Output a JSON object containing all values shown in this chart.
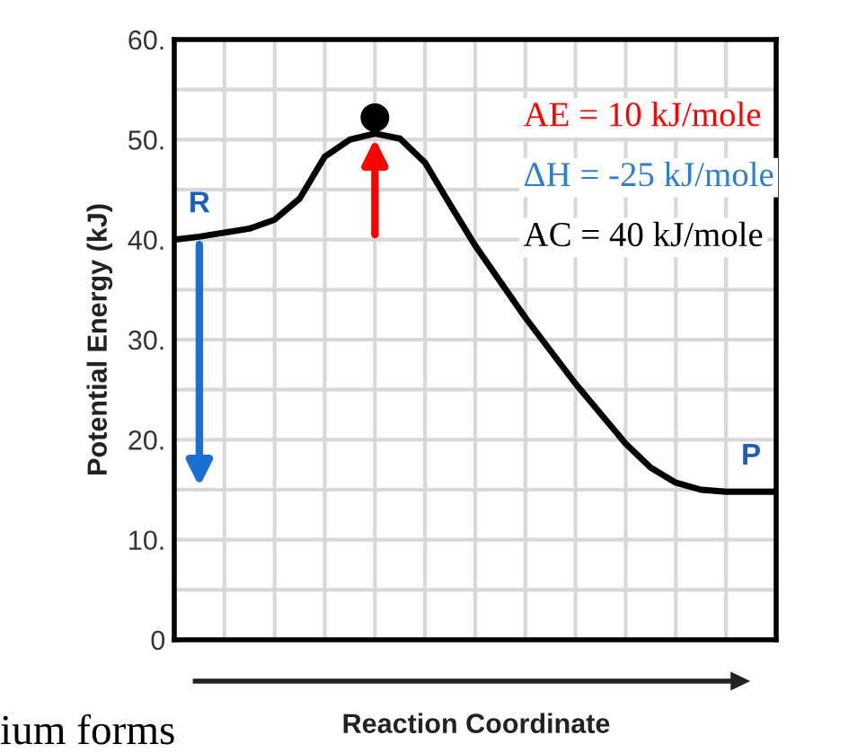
{
  "chart_data": {
    "type": "line",
    "xlabel": "Reaction Coordinate",
    "ylabel": "Potential Energy (kJ)",
    "categories": [
      null,
      null,
      null,
      null,
      null,
      null,
      null,
      null,
      null,
      null,
      null,
      null,
      null,
      null,
      null,
      null,
      null,
      null,
      null,
      null,
      null,
      null,
      null,
      null,
      null
    ],
    "series": [
      {
        "color": "#000000",
        "values": [
          40.0,
          40.3,
          40.7,
          41.1,
          42.0,
          44.1,
          48.3,
          50.0,
          50.6,
          50.1,
          47.7,
          43.5,
          39.4,
          35.8,
          32.2,
          28.9,
          25.6,
          22.6,
          19.6,
          17.2,
          15.7,
          15.0,
          14.8,
          14.8,
          14.8
        ]
      }
    ],
    "ylim": [
      0,
      60
    ],
    "yticks": [
      0,
      {
        "value": 5,
        "label": null
      },
      {
        "value": 10,
        "label": "10."
      },
      {
        "value": 15,
        "label": null
      },
      {
        "value": 20,
        "label": "20."
      },
      {
        "value": 25,
        "label": null
      },
      {
        "value": 30,
        "label": "30."
      },
      {
        "value": 35,
        "label": null
      },
      {
        "value": 40,
        "label": "40."
      },
      {
        "value": 45,
        "label": null
      },
      {
        "value": 50,
        "label": "50."
      },
      {
        "value": 55,
        "label": null
      },
      {
        "value": 60,
        "label": "60."
      }
    ],
    "grid": true,
    "marker": "none",
    "line_style": "solid",
    "tick_labels": "y",
    "annotations": [
      "R",
      "P",
      "AE = 10 kJ/mole",
      "ΔH = -25 kJ/mole",
      "AC = 40 kJ/mole",
      "ium forms"
    ]
  }
}
